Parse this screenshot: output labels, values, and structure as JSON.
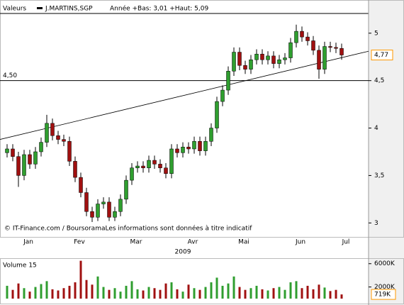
{
  "chart_data": {
    "type": "candlestick",
    "title": "Valeurs",
    "series_name": "J.MARTINS,SGP",
    "subtitle": "Année +Bas: 3,01 +Haut: 5,09",
    "footer": "© IT-Finance.com / BoursoramaLes informations sont données à titre indicatif",
    "x_title": "2009",
    "categories": [
      null,
      null,
      null,
      null,
      "Jan",
      null,
      null,
      null,
      null,
      null,
      null,
      null,
      null,
      "Fev",
      null,
      null,
      null,
      null,
      null,
      null,
      null,
      null,
      null,
      "Mar",
      null,
      null,
      null,
      null,
      null,
      null,
      null,
      null,
      null,
      "Avr",
      null,
      null,
      null,
      null,
      null,
      null,
      null,
      null,
      "Mai",
      null,
      null,
      null,
      null,
      null,
      null,
      null,
      null,
      null,
      "Jun",
      null,
      null,
      null,
      null,
      null,
      null,
      null,
      "Jul",
      null,
      null,
      null
    ],
    "open": [
      3.74,
      3.78,
      3.7,
      3.5,
      3.72,
      3.62,
      3.75,
      3.85,
      4.05,
      3.92,
      3.88,
      3.86,
      3.65,
      3.48,
      3.32,
      3.12,
      3.06,
      3.2,
      3.22,
      3.06,
      3.12,
      3.25,
      3.45,
      3.58,
      3.6,
      3.58,
      3.66,
      3.62,
      3.58,
      3.52,
      3.78,
      3.74,
      3.8,
      3.78,
      3.86,
      3.76,
      3.86,
      4.0,
      4.28,
      4.4,
      4.6,
      4.8,
      4.66,
      4.62,
      4.72,
      4.78,
      4.72,
      4.76,
      4.68,
      4.72,
      4.74,
      4.9,
      5.02,
      4.96,
      4.92,
      4.82,
      4.62,
      4.86,
      4.85,
      4.84,
      null,
      null,
      null,
      null
    ],
    "high": [
      3.83,
      3.83,
      3.75,
      3.77,
      3.77,
      3.8,
      3.9,
      4.14,
      4.1,
      3.97,
      3.93,
      3.91,
      3.7,
      3.53,
      3.37,
      3.17,
      3.25,
      3.27,
      3.27,
      3.17,
      3.3,
      3.5,
      3.63,
      3.65,
      3.65,
      3.71,
      3.71,
      3.67,
      3.63,
      3.83,
      3.83,
      3.85,
      3.85,
      3.91,
      3.91,
      3.91,
      4.05,
      4.33,
      4.45,
      4.65,
      4.85,
      4.85,
      4.71,
      4.77,
      4.83,
      4.83,
      4.81,
      4.81,
      4.77,
      4.79,
      4.95,
      5.09,
      5.07,
      5.01,
      4.97,
      4.87,
      4.91,
      4.91,
      4.9,
      4.89,
      null,
      null,
      null,
      null
    ],
    "low": [
      3.69,
      3.65,
      3.38,
      3.45,
      3.57,
      3.57,
      3.7,
      3.8,
      3.87,
      3.83,
      3.81,
      3.6,
      3.43,
      3.27,
      3.07,
      3.01,
      3.02,
      3.15,
      3.02,
      3.02,
      3.07,
      3.2,
      3.4,
      3.53,
      3.53,
      3.53,
      3.57,
      3.53,
      3.47,
      3.47,
      3.69,
      3.69,
      3.73,
      3.73,
      3.71,
      3.71,
      3.81,
      3.95,
      4.23,
      4.35,
      4.55,
      4.61,
      4.57,
      4.57,
      4.67,
      4.67,
      4.67,
      4.63,
      4.63,
      4.67,
      4.69,
      4.85,
      4.91,
      4.87,
      4.77,
      4.52,
      4.57,
      4.8,
      4.79,
      4.72,
      null,
      null,
      null,
      null
    ],
    "close": [
      3.78,
      3.7,
      3.5,
      3.72,
      3.62,
      3.75,
      3.85,
      4.05,
      3.92,
      3.88,
      3.86,
      3.65,
      3.48,
      3.32,
      3.12,
      3.06,
      3.2,
      3.22,
      3.06,
      3.12,
      3.25,
      3.45,
      3.58,
      3.6,
      3.58,
      3.66,
      3.62,
      3.58,
      3.52,
      3.78,
      3.74,
      3.8,
      3.78,
      3.86,
      3.76,
      3.86,
      4.0,
      4.28,
      4.4,
      4.6,
      4.8,
      4.66,
      4.62,
      4.72,
      4.78,
      4.72,
      4.76,
      4.68,
      4.72,
      4.74,
      4.9,
      5.02,
      4.96,
      4.92,
      4.82,
      4.62,
      4.86,
      4.85,
      4.84,
      4.77,
      null,
      null,
      null,
      null
    ],
    "up_color": "#2f9e2f",
    "down_color": "#a01010",
    "ylim": [
      2.92,
      5.29
    ],
    "yticks": [
      3,
      {
        "value": 3.5,
        "label": "3,5"
      },
      4,
      {
        "value": 4.5,
        "label": "4,5"
      },
      5
    ],
    "level_line": {
      "value": 4.5,
      "label": "4,50"
    },
    "last_price": {
      "value": 4.77,
      "label": "4,77"
    },
    "trendline": {
      "start": 3.88,
      "end": 4.81
    },
    "volume_title": "Volume 15",
    "volume": [
      2200000,
      1500000,
      2600000,
      1800000,
      1200000,
      2000000,
      2500000,
      3000000,
      1600000,
      1400000,
      1800000,
      2200000,
      2800000,
      6500000,
      3200000,
      2400000,
      3800000,
      2000000,
      1500000,
      1800000,
      1200000,
      2200000,
      3000000,
      1600000,
      1400000,
      2000000,
      1800000,
      1500000,
      2600000,
      2800000,
      1600000,
      1200000,
      2400000,
      1800000,
      1500000,
      2000000,
      2800000,
      3600000,
      2200000,
      2600000,
      3800000,
      2000000,
      1500000,
      1800000,
      2200000,
      1600000,
      1400000,
      1800000,
      2000000,
      1500000,
      2800000,
      3000000,
      1800000,
      2200000,
      1600000,
      2400000,
      1900000,
      1300000,
      1500000,
      719000,
      null,
      null,
      null,
      null
    ],
    "volume_ylim": [
      0,
      6700000
    ],
    "volume_yticks": [
      {
        "value": 2000000,
        "label": "2000K"
      },
      {
        "value": 6000000,
        "label": "6000K"
      }
    ],
    "last_volume": {
      "value": 719000,
      "label": "719K"
    }
  }
}
